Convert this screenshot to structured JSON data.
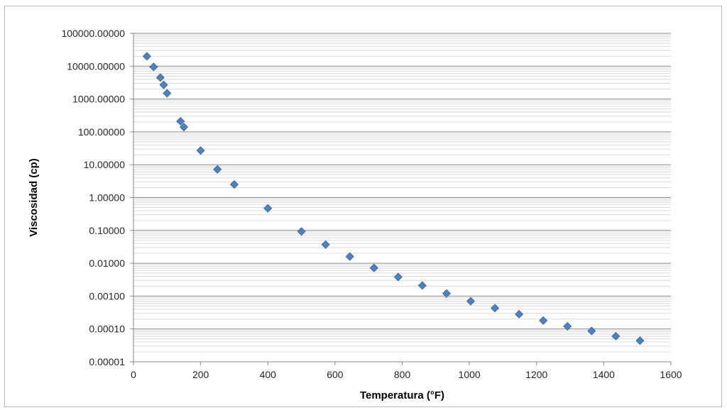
{
  "chart_data": {
    "type": "scatter",
    "title": "",
    "xlabel": "Temperatura (°F)",
    "ylabel": "Viscosidad (cp)",
    "xlim": [
      0,
      1600
    ],
    "ylim": [
      1e-05,
      100000
    ],
    "y_scale": "log",
    "x_ticks": [
      "0",
      "200",
      "400",
      "600",
      "800",
      "1000",
      "1200",
      "1400",
      "1600"
    ],
    "y_ticks": [
      "0.00001",
      "0.00010",
      "0.00100",
      "0.01000",
      "0.10000",
      "1.00000",
      "10.00000",
      "100.00000",
      "1000.00000",
      "10000.00000",
      "100000.00000"
    ],
    "grid": true,
    "minor_grid": true,
    "legend": "none",
    "marker": "diamond",
    "colors": {
      "marker": "#4f81bd",
      "marker_edge": "#3a6596",
      "major_grid": "#868686",
      "minor_grid": "#d9d9d9",
      "axis": "#868686"
    },
    "series": [
      {
        "points": [
          [
            40,
            20000
          ],
          [
            60,
            9500
          ],
          [
            80,
            4500
          ],
          [
            90,
            2700
          ],
          [
            100,
            1500
          ],
          [
            140,
            210
          ],
          [
            150,
            140
          ],
          [
            200,
            27
          ],
          [
            250,
            7.2
          ],
          [
            300,
            2.5
          ],
          [
            400,
            0.47
          ],
          [
            500,
            0.093
          ],
          [
            572,
            0.037
          ],
          [
            644,
            0.016
          ],
          [
            716,
            0.0072
          ],
          [
            788,
            0.0038
          ],
          [
            860,
            0.0021
          ],
          [
            932,
            0.0012
          ],
          [
            1004,
            0.0007
          ],
          [
            1076,
            0.00043
          ],
          [
            1148,
            0.00028
          ],
          [
            1220,
            0.00018
          ],
          [
            1292,
            0.00012
          ],
          [
            1364,
            8.7e-05
          ],
          [
            1436,
            6e-05
          ],
          [
            1508,
            4.4e-05
          ]
        ]
      }
    ]
  }
}
